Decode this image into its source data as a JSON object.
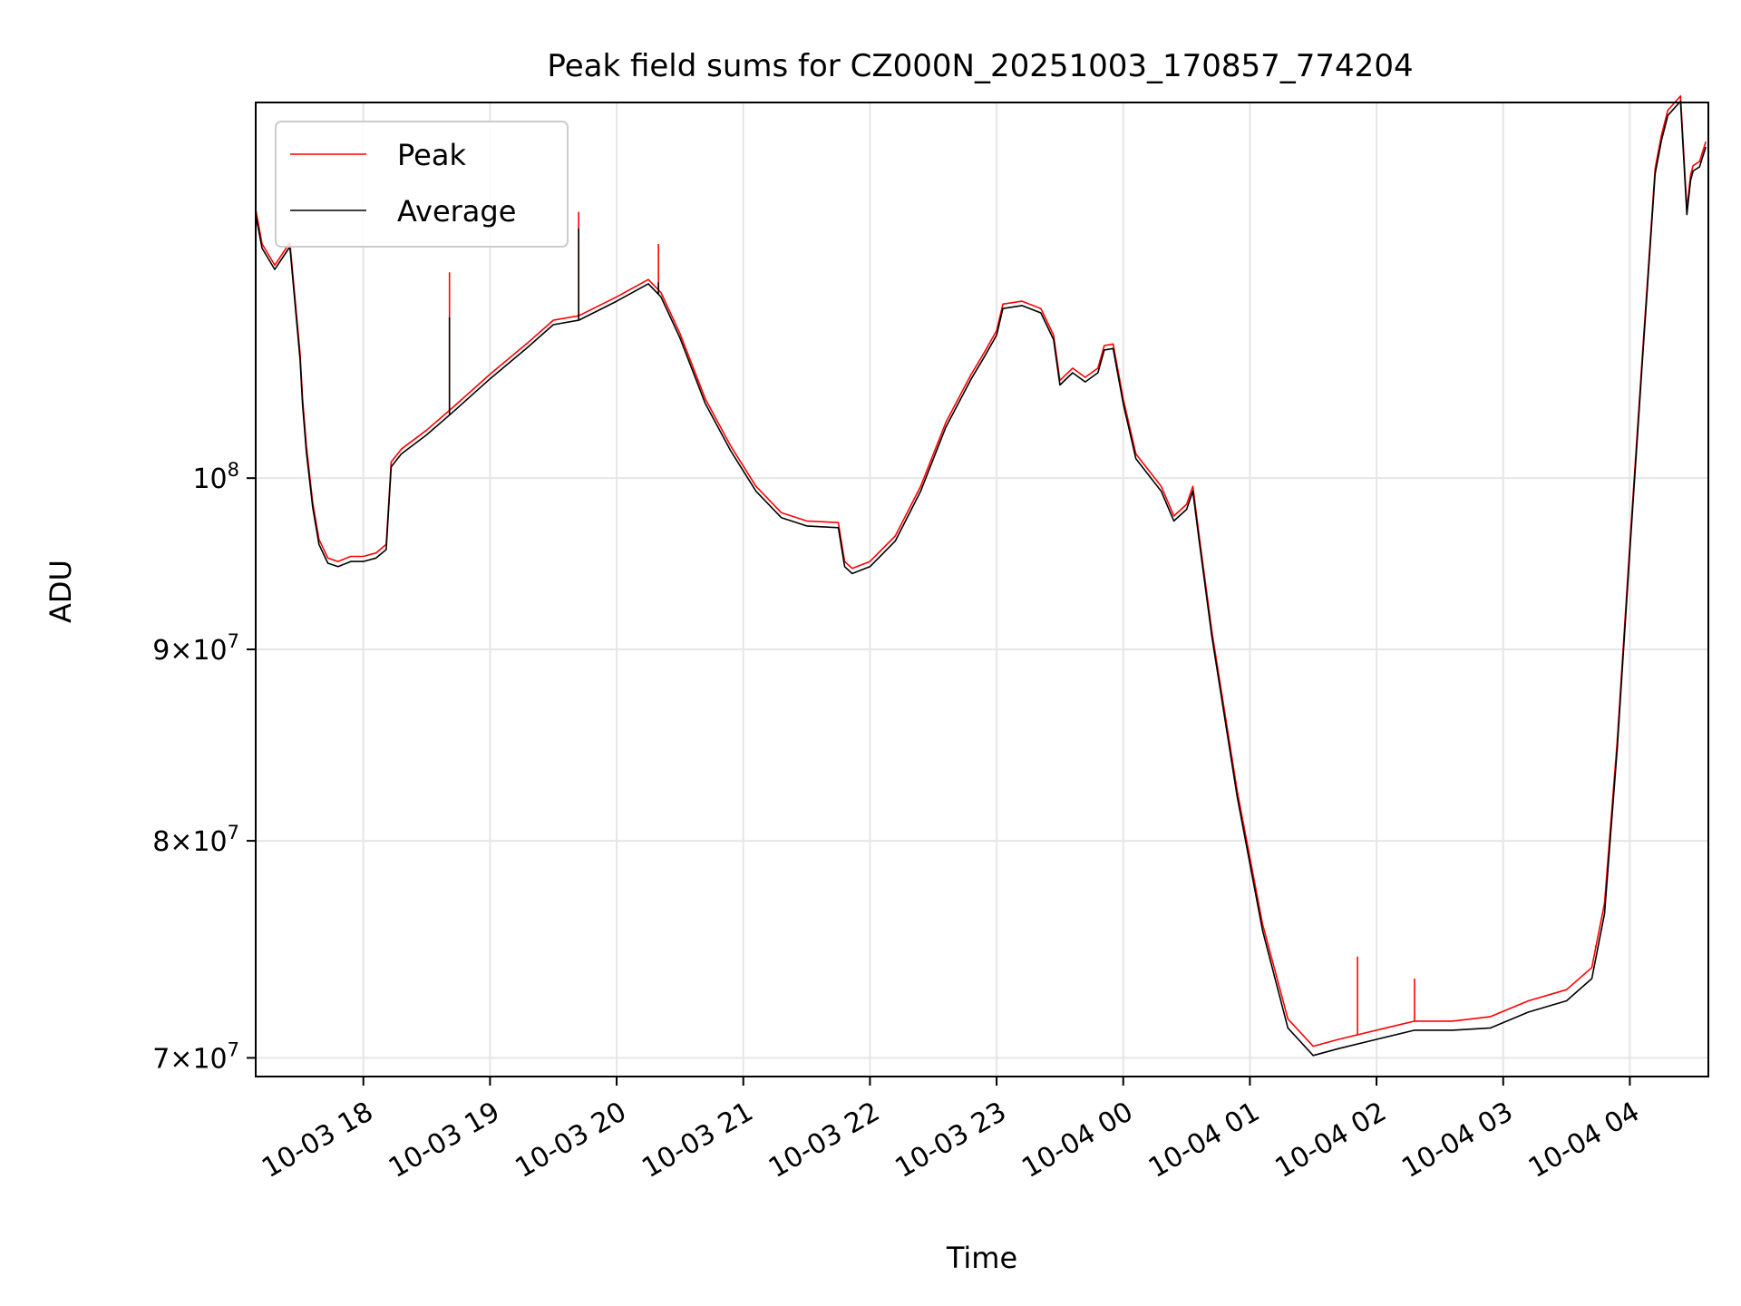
{
  "chart_data": {
    "type": "line",
    "title": "Peak field sums for CZ000N_20251003_170857_774204",
    "xlabel": "Time",
    "ylabel": "ADU",
    "yscale": "log",
    "grid": true,
    "legend_position": "upper-left",
    "xlim_hours": [
      17.15,
      28.62
    ],
    "ylim": [
      69200000,
      126000000
    ],
    "x_ticks": [
      {
        "label": "10-03 18",
        "hour": 18
      },
      {
        "label": "10-03 19",
        "hour": 19
      },
      {
        "label": "10-03 20",
        "hour": 20
      },
      {
        "label": "10-03 21",
        "hour": 21
      },
      {
        "label": "10-03 22",
        "hour": 22
      },
      {
        "label": "10-03 23",
        "hour": 23
      },
      {
        "label": "10-04 00",
        "hour": 24
      },
      {
        "label": "10-04 01",
        "hour": 25
      },
      {
        "label": "10-04 02",
        "hour": 26
      },
      {
        "label": "10-04 03",
        "hour": 27
      },
      {
        "label": "10-04 04",
        "hour": 28
      }
    ],
    "y_ticks": [
      {
        "base": "10",
        "exp": "8",
        "value": 100000000
      },
      {
        "base": "9×10",
        "exp": "7",
        "value": 90000000
      },
      {
        "base": "8×10",
        "exp": "7",
        "value": 80000000
      },
      {
        "base": "7×10",
        "exp": "7",
        "value": 70000000
      }
    ],
    "series": [
      {
        "name": "Peak",
        "color": "#ff0000",
        "x": [
          17.15,
          17.2,
          17.3,
          17.42,
          17.5,
          17.52,
          17.55,
          17.6,
          17.65,
          17.72,
          17.8,
          17.9,
          18.0,
          18.1,
          18.18,
          18.22,
          18.3,
          18.5,
          18.7,
          19.0,
          19.3,
          19.5,
          19.7,
          20.0,
          20.25,
          20.35,
          20.5,
          20.7,
          20.9,
          21.1,
          21.3,
          21.5,
          21.75,
          21.8,
          21.86,
          22.0,
          22.2,
          22.4,
          22.6,
          22.8,
          22.9,
          23.0,
          23.05,
          23.2,
          23.35,
          23.45,
          23.5,
          23.6,
          23.7,
          23.8,
          23.85,
          23.92,
          24.0,
          24.1,
          24.3,
          24.4,
          24.5,
          24.55,
          24.6,
          24.7,
          24.9,
          25.1,
          25.3,
          25.5,
          25.7,
          26.0,
          26.3,
          26.6,
          26.9,
          27.2,
          27.5,
          27.7,
          27.8,
          27.9,
          28.0,
          28.1,
          28.2,
          28.25,
          28.3,
          28.4,
          28.45,
          28.48,
          28.5,
          28.55,
          28.6
        ],
        "values": [
          118000000,
          115500000,
          114000000,
          115600000,
          108000000,
          105000000,
          102000000,
          98500000,
          96300000,
          95200000,
          95000000,
          95300000,
          95300000,
          95500000,
          96000000,
          101000000,
          101800000,
          103000000,
          104400000,
          106600000,
          108700000,
          110200000,
          110500000,
          111800000,
          113000000,
          112100000,
          109300000,
          105000000,
          102000000,
          99500000,
          97900000,
          97400000,
          97300000,
          95000000,
          94600000,
          95000000,
          96500000,
          99500000,
          103500000,
          106600000,
          108000000,
          109500000,
          111300000,
          111500000,
          111000000,
          109200000,
          106200000,
          107000000,
          106400000,
          107000000,
          108500000,
          108600000,
          105000000,
          101500000,
          99500000,
          97700000,
          98400000,
          99500000,
          96500000,
          91000000,
          82500000,
          76000000,
          71700000,
          70500000,
          70800000,
          71200000,
          71600000,
          71600000,
          71800000,
          72500000,
          73000000,
          74000000,
          77000000,
          85000000,
          96000000,
          108000000,
          121000000,
          123500000,
          125400000,
          126500000,
          118000000,
          120500000,
          121200000,
          121500000,
          123000000
        ]
      },
      {
        "name": "Average",
        "color": "#000000",
        "x": [
          17.15,
          17.2,
          17.3,
          17.42,
          17.5,
          17.52,
          17.55,
          17.6,
          17.65,
          17.72,
          17.8,
          17.9,
          18.0,
          18.1,
          18.18,
          18.22,
          18.3,
          18.5,
          18.7,
          19.0,
          19.3,
          19.5,
          19.7,
          20.0,
          20.25,
          20.35,
          20.5,
          20.7,
          20.9,
          21.1,
          21.3,
          21.5,
          21.75,
          21.8,
          21.86,
          22.0,
          22.2,
          22.4,
          22.6,
          22.8,
          22.9,
          23.0,
          23.05,
          23.2,
          23.35,
          23.45,
          23.5,
          23.6,
          23.7,
          23.8,
          23.85,
          23.92,
          24.0,
          24.1,
          24.3,
          24.4,
          24.5,
          24.55,
          24.6,
          24.7,
          24.9,
          25.1,
          25.3,
          25.5,
          25.7,
          26.0,
          26.3,
          26.6,
          26.9,
          27.2,
          27.5,
          27.7,
          27.8,
          27.9,
          28.0,
          28.1,
          28.2,
          28.25,
          28.3,
          28.4,
          28.45,
          28.48,
          28.5,
          28.55,
          28.6
        ],
        "values": [
          117600000,
          115200000,
          113700000,
          115300000,
          107600000,
          104600000,
          101600000,
          98200000,
          96000000,
          94900000,
          94700000,
          95000000,
          95000000,
          95200000,
          95700000,
          100700000,
          101500000,
          102700000,
          104100000,
          106300000,
          108400000,
          109900000,
          110200000,
          111500000,
          112700000,
          111800000,
          109000000,
          104700000,
          101700000,
          99200000,
          97600000,
          97100000,
          97000000,
          94700000,
          94300000,
          94700000,
          96200000,
          99200000,
          103200000,
          106300000,
          107700000,
          109200000,
          111000000,
          111200000,
          110700000,
          108900000,
          105900000,
          106700000,
          106100000,
          106700000,
          108200000,
          108300000,
          104700000,
          101200000,
          99200000,
          97400000,
          98100000,
          99200000,
          96200000,
          90700000,
          82200000,
          75700000,
          71300000,
          70100000,
          70400000,
          70800000,
          71200000,
          71200000,
          71300000,
          72000000,
          72500000,
          73500000,
          76500000,
          84600000,
          95600000,
          107600000,
          120600000,
          123100000,
          125000000,
          126100000,
          117600000,
          120100000,
          120800000,
          121100000,
          122600000
        ]
      }
    ],
    "spikes_peak": [
      {
        "x": 18.22,
        "value": 101000000
      },
      {
        "x": 18.68,
        "value": 113500000
      },
      {
        "x": 19.7,
        "value": 117800000
      },
      {
        "x": 20.33,
        "value": 115500000
      },
      {
        "x": 25.85,
        "value": 74500000
      },
      {
        "x": 26.3,
        "value": 73500000
      },
      {
        "x": 27.73,
        "value": 75000000
      }
    ],
    "spikes_average": [
      {
        "x": 18.68,
        "value": 110400000
      },
      {
        "x": 19.7,
        "value": 116600000
      },
      {
        "x": 20.33,
        "value": 112800000
      }
    ]
  }
}
